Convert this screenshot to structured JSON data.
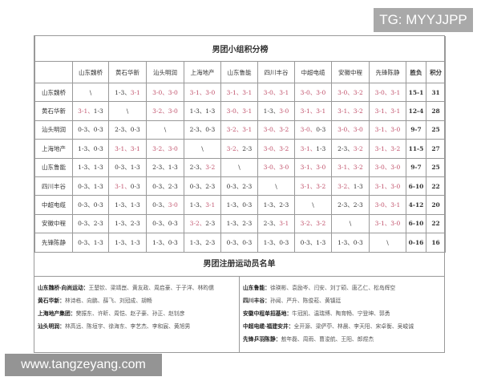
{
  "watermark_top": "TG: MYYJJPP",
  "watermark_bottom": "www.tangzeyang.com",
  "standings": {
    "title": "男团小组积分榜",
    "headers": [
      "",
      "山东魏桥",
      "黄石华新",
      "汕头明润",
      "上海地产",
      "山东鲁能",
      "四川丰谷",
      "中超电缆",
      "安徽中程",
      "先锋陈静",
      "胜负",
      "积分"
    ],
    "rows": [
      {
        "team": "山东魏桥",
        "results": [
          "\\",
          "1-3、3-1",
          "3-0、3-0",
          "3-1、3-0",
          "3-1、3-1",
          "3-0、3-1",
          "3-0、3-0",
          "3-0、3-2",
          "3-0、3-1"
        ],
        "record": "15-1",
        "points": "31"
      },
      {
        "team": "黄石华新",
        "results": [
          "3-1、1-3",
          "\\",
          "3-2、3-0",
          "1-3、1-3",
          "3-0、3-1",
          "1-3、3-0",
          "3-1、3-1",
          "3-1、3-2",
          "3-1、3-1"
        ],
        "record": "12-4",
        "points": "28"
      },
      {
        "team": "汕头明润",
        "results": [
          "0-3、0-3",
          "2-3、0-3",
          "\\",
          "2-3、0-3",
          "3-2、3-1",
          "3-0、3-2",
          "3-0、0-3",
          "3-0、3-0",
          "3-1、3-0"
        ],
        "record": "9-7",
        "points": "25"
      },
      {
        "team": "上海地产",
        "results": [
          "1-3、0-3",
          "3-1、3-1",
          "3-2、3-0",
          "\\",
          "3-2、2-3",
          "3-0、3-2",
          "3-1、1-3",
          "2-3、3-2",
          "3-1、3-2"
        ],
        "record": "11-5",
        "points": "27"
      },
      {
        "team": "山东鲁能",
        "results": [
          "1-3、1-3",
          "0-3、1-3",
          "2-3、1-3",
          "2-3、3-2",
          "\\",
          "3-0、3-0",
          "3-1、3-0",
          "3-1、3-2",
          "3-0、3-0"
        ],
        "record": "9-7",
        "points": "25"
      },
      {
        "team": "四川丰谷",
        "results": [
          "0-3、1-3",
          "3-1、0-3",
          "0-3、2-3",
          "0-3、2-3",
          "0-3、2-3",
          "\\",
          "3-1、3-2",
          "3-2、1-3",
          "3-1、3-0"
        ],
        "record": "6-10",
        "points": "22"
      },
      {
        "team": "中超电缆",
        "results": [
          "0-3、0-3",
          "1-3、1-3",
          "0-3、3-0",
          "1-3、3-1",
          "1-3、0-3",
          "1-3、2-3",
          "\\",
          "2-3、2-3",
          "3-0、3-1"
        ],
        "record": "4-12",
        "points": "20"
      },
      {
        "team": "安徽中程",
        "results": [
          "0-3、2-3",
          "1-3、2-3",
          "0-3、0-3",
          "3-2、2-3",
          "1-3、2-3",
          "2-3、3-1",
          "3-2、3-2",
          "\\",
          "3-1、3-0"
        ],
        "record": "6-10",
        "points": "22"
      },
      {
        "team": "先锋陈静",
        "results": [
          "0-3、1-3",
          "1-3、1-3",
          "1-3、0-3",
          "1-3、2-3",
          "0-3、0-3",
          "1-3、0-3",
          "0-3、1-3",
          "1-3、0-3",
          "\\"
        ],
        "record": "0-16",
        "points": "16"
      }
    ],
    "win_color": "#c0506a"
  },
  "roster": {
    "title": "男团注册运动员名单",
    "left": [
      {
        "team": "山东魏桥·向尚运动：",
        "players": "王楚钦、梁靖崑、黄友政、周启豪、于子洋、林昀儒"
      },
      {
        "team": "黄石华新：",
        "players": "林诗栋、向鹏、薛飞、刘冠成、胡畅"
      },
      {
        "team": "上海地产集团：",
        "players": "樊振东、许昕、周恺、赵子豪、孙正、赵钊彦"
      },
      {
        "team": "汕头明润：",
        "players": "林高远、陈垣宇、徐海东、李艺杰、李和宸、黄旭男"
      }
    ],
    "right": [
      {
        "team": "山东鲁能：",
        "players": "徐瑛彬、袁励岑、闫安、刘丁硕、唐乙仁、松岛辉空"
      },
      {
        "team": "四川丰谷：",
        "players": "孙闻、严升、陈俊菘、黄镇廷"
      },
      {
        "team": "安徽中程单招基地：",
        "players": "牛冠凯、温瑞博、陶育畅、宁登坤、郭勇"
      },
      {
        "team": "中超电缆·福建安井：",
        "players": "全开源、梁俨苧、林晨、李天阳、宋卓衡、吴峻诚"
      },
      {
        "team": "先锋乒羽陈静：",
        "players": "敖年磊、周雨、曹浚航、王阳、郎煜杰"
      }
    ]
  }
}
